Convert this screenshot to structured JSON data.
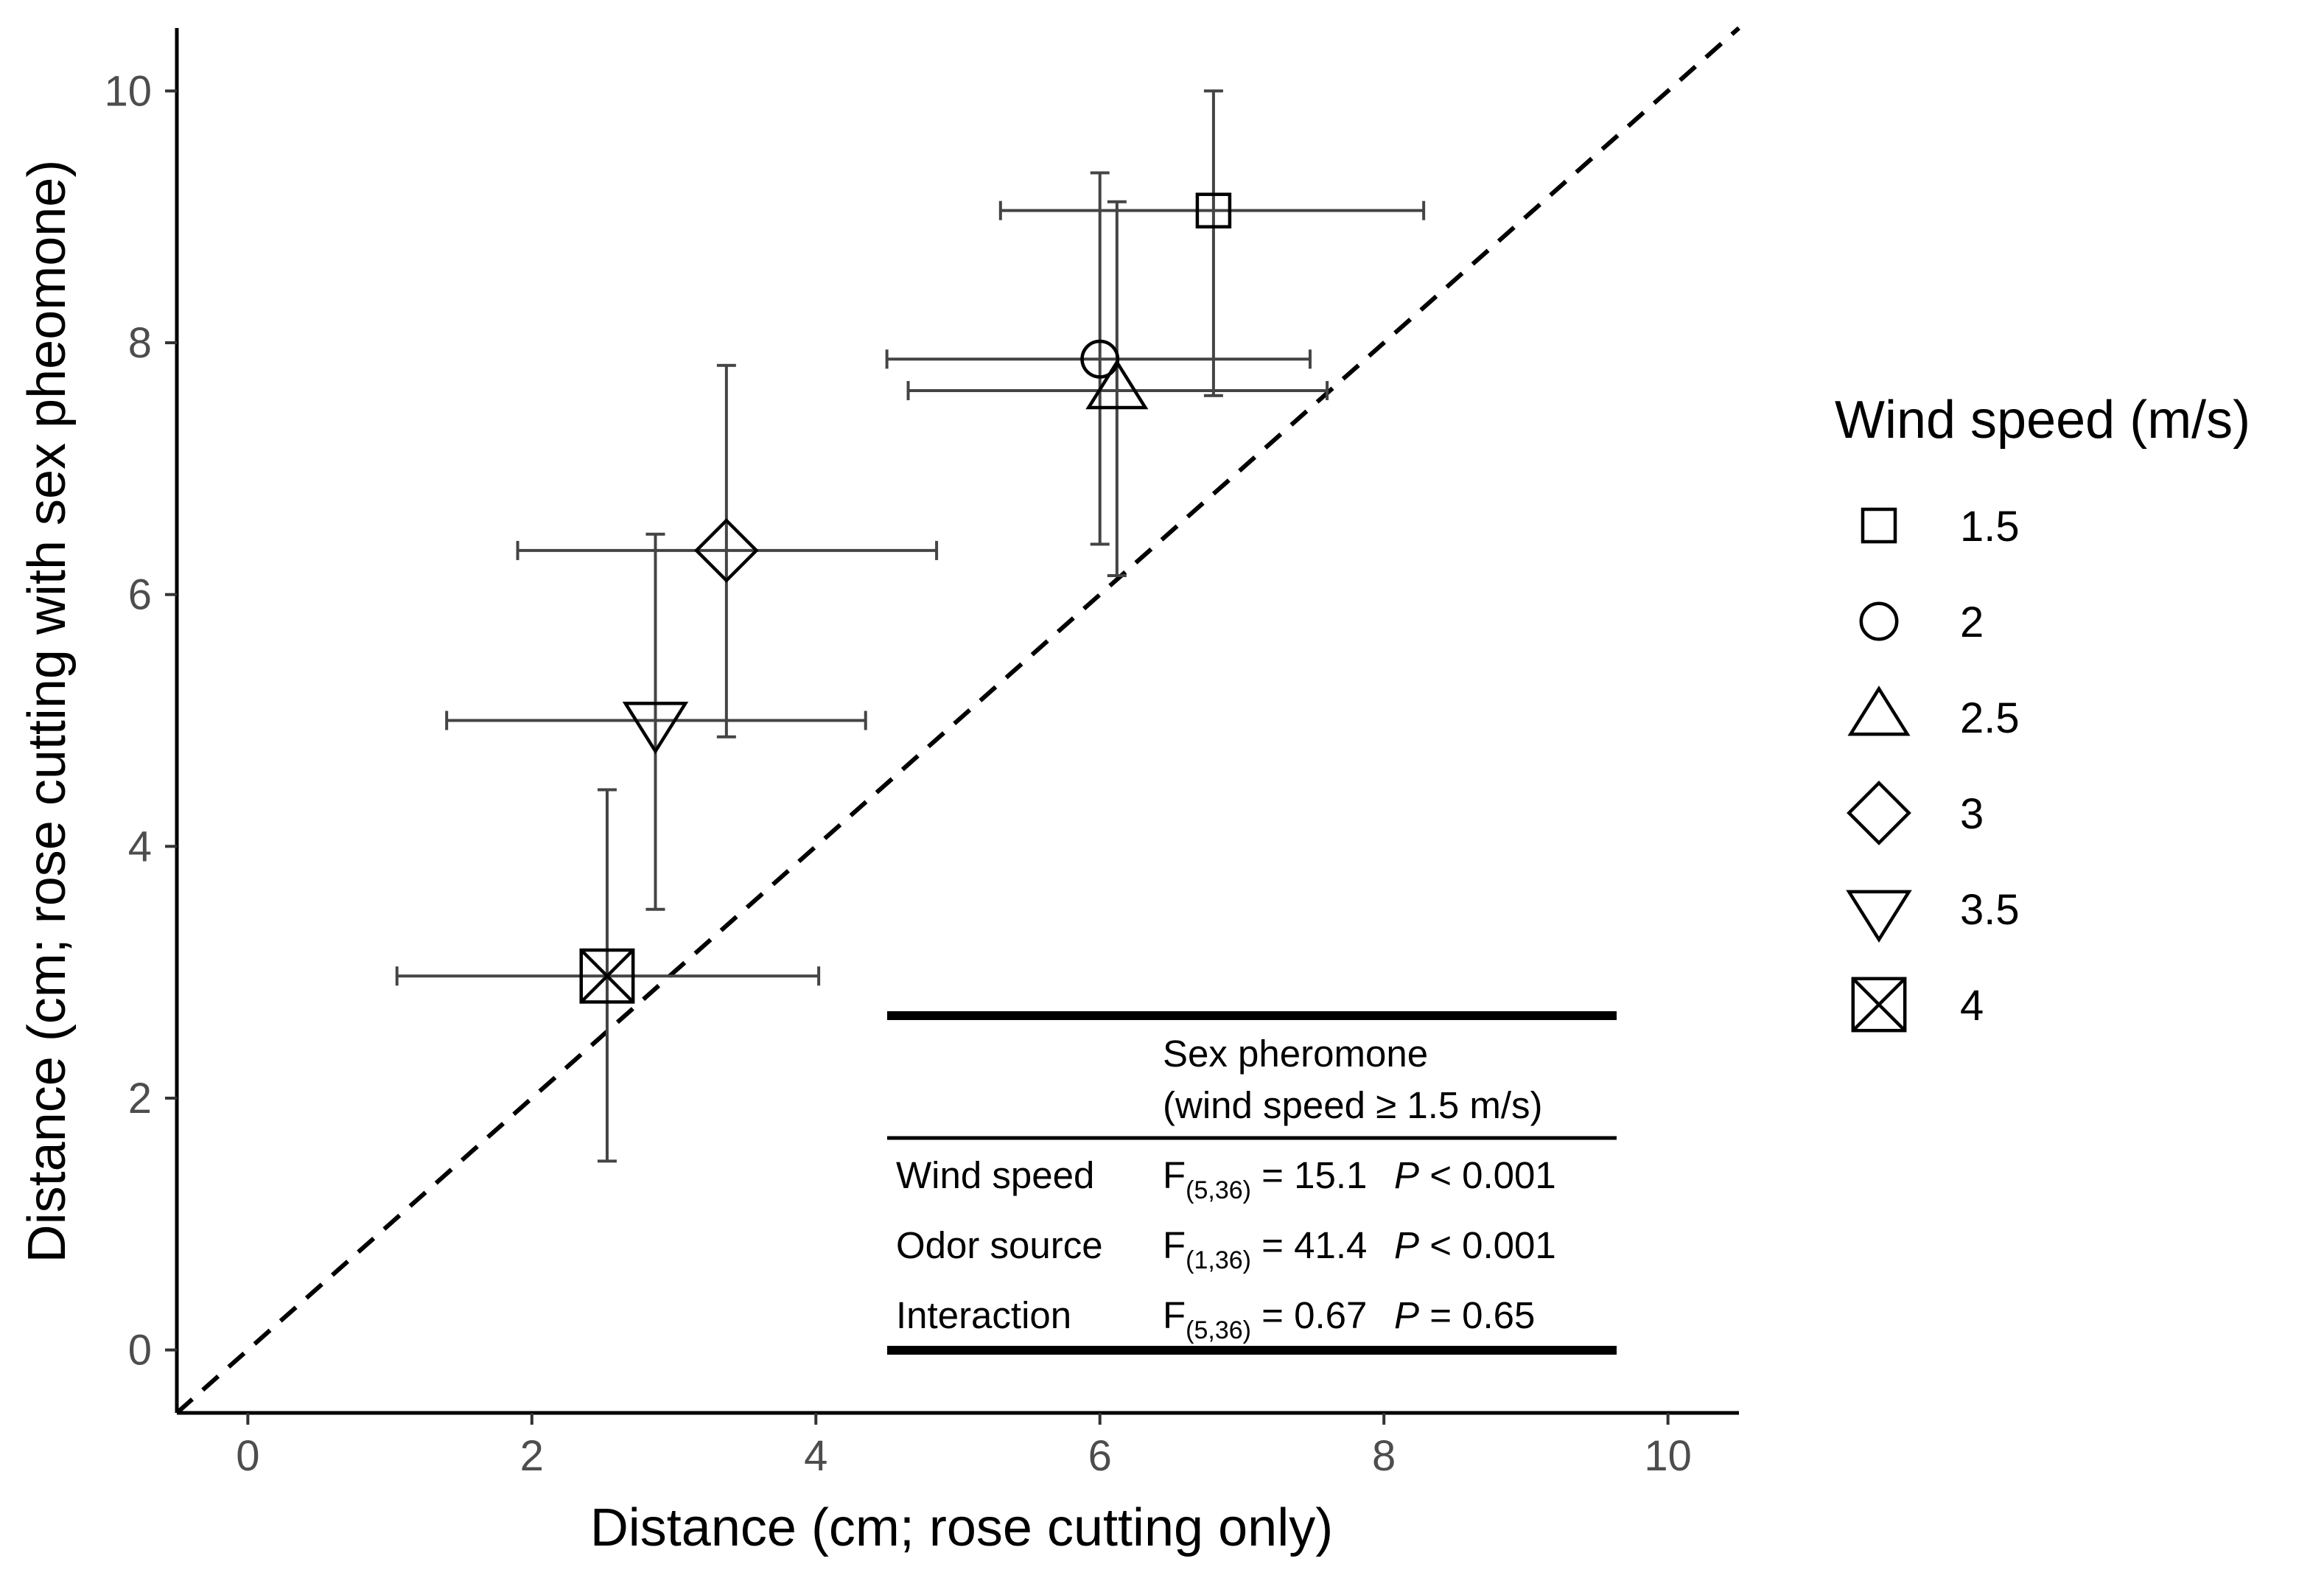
{
  "chart_data": {
    "type": "scatter",
    "xlabel": "Distance (cm; rose cutting only)",
    "ylabel": "Distance (cm; rose cutting with sex pheomone)",
    "xlim": [
      -0.5,
      10.5
    ],
    "ylim": [
      -0.5,
      10.5
    ],
    "xticks": [
      0,
      2,
      4,
      6,
      8,
      10
    ],
    "yticks": [
      0,
      2,
      4,
      6,
      8,
      10
    ],
    "grid": false,
    "reference_line": {
      "type": "identity",
      "style": "dashed"
    },
    "legend": {
      "title": "Wind speed (m/s)",
      "placement": "right",
      "entries": [
        {
          "label": "1.5",
          "shape": "square"
        },
        {
          "label": "2",
          "shape": "circle"
        },
        {
          "label": "2.5",
          "shape": "triangle-up"
        },
        {
          "label": "3",
          "shape": "diamond"
        },
        {
          "label": "3.5",
          "shape": "triangle-down"
        },
        {
          "label": "4",
          "shape": "square-cross"
        }
      ]
    },
    "points": [
      {
        "wind_speed": "1.5",
        "x": 6.8,
        "y": 9.05,
        "x_err": [
          5.3,
          8.28
        ],
        "y_err": [
          7.58,
          10.0
        ]
      },
      {
        "wind_speed": "2",
        "x": 6.0,
        "y": 7.87,
        "x_err": [
          4.5,
          7.48
        ],
        "y_err": [
          6.4,
          9.35
        ]
      },
      {
        "wind_speed": "2.5",
        "x": 6.12,
        "y": 7.62,
        "x_err": [
          4.65,
          7.6
        ],
        "y_err": [
          6.15,
          9.12
        ]
      },
      {
        "wind_speed": "3",
        "x": 3.37,
        "y": 6.35,
        "x_err": [
          1.9,
          4.85
        ],
        "y_err": [
          4.87,
          7.82
        ]
      },
      {
        "wind_speed": "3.5",
        "x": 2.87,
        "y": 5.0,
        "x_err": [
          1.4,
          4.35
        ],
        "y_err": [
          3.5,
          6.48
        ]
      },
      {
        "wind_speed": "4",
        "x": 2.53,
        "y": 2.97,
        "x_err": [
          1.05,
          4.02
        ],
        "y_err": [
          1.5,
          4.45
        ]
      }
    ],
    "annotation_table": {
      "header_line1": "Sex pheromone",
      "header_line2": "(wind speed ≥ 1.5 m/s)",
      "rows": [
        {
          "label": "Wind speed",
          "f": "F",
          "df": "(5,36)",
          "f_value": "= 15.1",
          "p": "P",
          "p_value": "< 0.001"
        },
        {
          "label": "Odor source",
          "f": "F",
          "df": "(1,36)",
          "f_value": "= 41.4",
          "p": "P",
          "p_value": "< 0.001"
        },
        {
          "label": "Interaction",
          "f": "F",
          "df": "(5,36)",
          "f_value": "= 0.67",
          "p": "P",
          "p_value": "= 0.65"
        }
      ]
    }
  }
}
